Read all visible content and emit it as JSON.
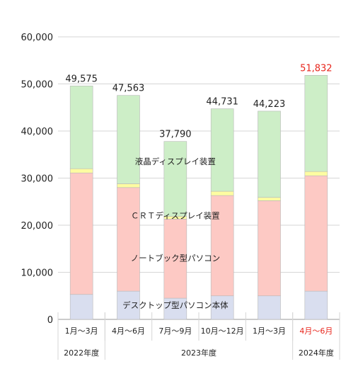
{
  "chart_data": {
    "type": "bar",
    "stacked": true,
    "categories": [
      "1月～3月",
      "4月～6月",
      "7月～9月",
      "10月～12月",
      "1月～3月",
      "4月～6月"
    ],
    "year_groups": [
      {
        "label": "2022年度",
        "span": [
          0,
          0
        ]
      },
      {
        "label": "2023年度",
        "span": [
          1,
          4
        ]
      },
      {
        "label": "2024年度",
        "span": [
          5,
          5
        ]
      }
    ],
    "series": [
      {
        "name": "デスクトップ型パソコン本体",
        "color": "#d9deef",
        "values": [
          5300,
          6000,
          4500,
          5000,
          5000,
          6000
        ]
      },
      {
        "name": "ノートブック型パソコン",
        "color": "#fdc9c4",
        "values": [
          25800,
          22000,
          16800,
          21300,
          20200,
          24500
        ]
      },
      {
        "name": "CRTディスプレイ装置",
        "color": "#fdfca1",
        "values": [
          900,
          800,
          600,
          900,
          700,
          900
        ]
      },
      {
        "name": "液晶ディスプレイ装置",
        "color": "#cdeec7",
        "values": [
          17575,
          18763,
          15890,
          17531,
          18323,
          20432
        ]
      }
    ],
    "totals": [
      49575,
      47563,
      37790,
      44731,
      44223,
      51832
    ],
    "total_labels": [
      "49,575",
      "47,563",
      "37,790",
      "44,731",
      "44,223",
      "51,832"
    ],
    "highlight_index": 5,
    "highlight_color": "#e8261c",
    "ylim": [
      0,
      60000
    ],
    "yticks": [
      0,
      10000,
      20000,
      30000,
      40000,
      50000,
      60000
    ],
    "ytick_labels": [
      "0",
      "10,000",
      "20,000",
      "30,000",
      "40,000",
      "50,000",
      "60,000"
    ],
    "grid": true,
    "series_labels": [
      {
        "text": "液晶ディスプレイ装置",
        "bar": 2,
        "value": 33500
      },
      {
        "text": "ＣＲＴディスプレイ装置",
        "bar": 2,
        "value": 22000
      },
      {
        "text": "ノートブック型パソコン",
        "bar": 2,
        "value": 13000
      },
      {
        "text": "デスクトップ型パソコン本体",
        "bar": 2,
        "value": 3000
      }
    ]
  }
}
